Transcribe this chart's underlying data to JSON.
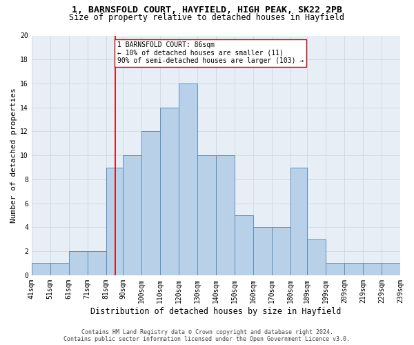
{
  "title_line1": "1, BARNSFOLD COURT, HAYFIELD, HIGH PEAK, SK22 2PB",
  "title_line2": "Size of property relative to detached houses in Hayfield",
  "xlabel": "Distribution of detached houses by size in Hayfield",
  "ylabel": "Number of detached properties",
  "footnote": "Contains HM Land Registry data © Crown copyright and database right 2024.\nContains public sector information licensed under the Open Government Licence v3.0.",
  "bin_labels": [
    "41sqm",
    "51sqm",
    "61sqm",
    "71sqm",
    "81sqm",
    "90sqm",
    "100sqm",
    "110sqm",
    "120sqm",
    "130sqm",
    "140sqm",
    "150sqm",
    "160sqm",
    "170sqm",
    "180sqm",
    "189sqm",
    "199sqm",
    "209sqm",
    "219sqm",
    "229sqm",
    "239sqm"
  ],
  "bin_left_edges": [
    41,
    51,
    61,
    71,
    81,
    90,
    100,
    110,
    120,
    130,
    140,
    150,
    160,
    170,
    180,
    189,
    199,
    209,
    219,
    229
  ],
  "bin_widths": [
    10,
    10,
    10,
    10,
    9,
    10,
    10,
    10,
    10,
    10,
    10,
    10,
    10,
    10,
    9,
    10,
    10,
    10,
    10,
    10
  ],
  "counts": [
    1,
    1,
    2,
    2,
    9,
    10,
    12,
    14,
    16,
    10,
    10,
    5,
    4,
    4,
    9,
    3,
    1,
    1,
    1,
    1
  ],
  "bar_color": "#b8d0e8",
  "bar_edge_color": "#5a8fc0",
  "property_line_x": 86,
  "property_line_color": "#cc0000",
  "annotation_text": "1 BARNSFOLD COURT: 86sqm\n← 10% of detached houses are smaller (11)\n90% of semi-detached houses are larger (103) →",
  "annotation_box_color": "#ffffff",
  "annotation_box_edge": "#cc0000",
  "ylim": [
    0,
    20
  ],
  "yticks": [
    0,
    2,
    4,
    6,
    8,
    10,
    12,
    14,
    16,
    18,
    20
  ],
  "grid_color": "#c8d4e0",
  "background_color": "#e8eef5",
  "title_fontsize": 9.5,
  "subtitle_fontsize": 8.5,
  "axis_label_fontsize": 8,
  "tick_fontsize": 7,
  "annotation_fontsize": 7,
  "footnote_fontsize": 6
}
